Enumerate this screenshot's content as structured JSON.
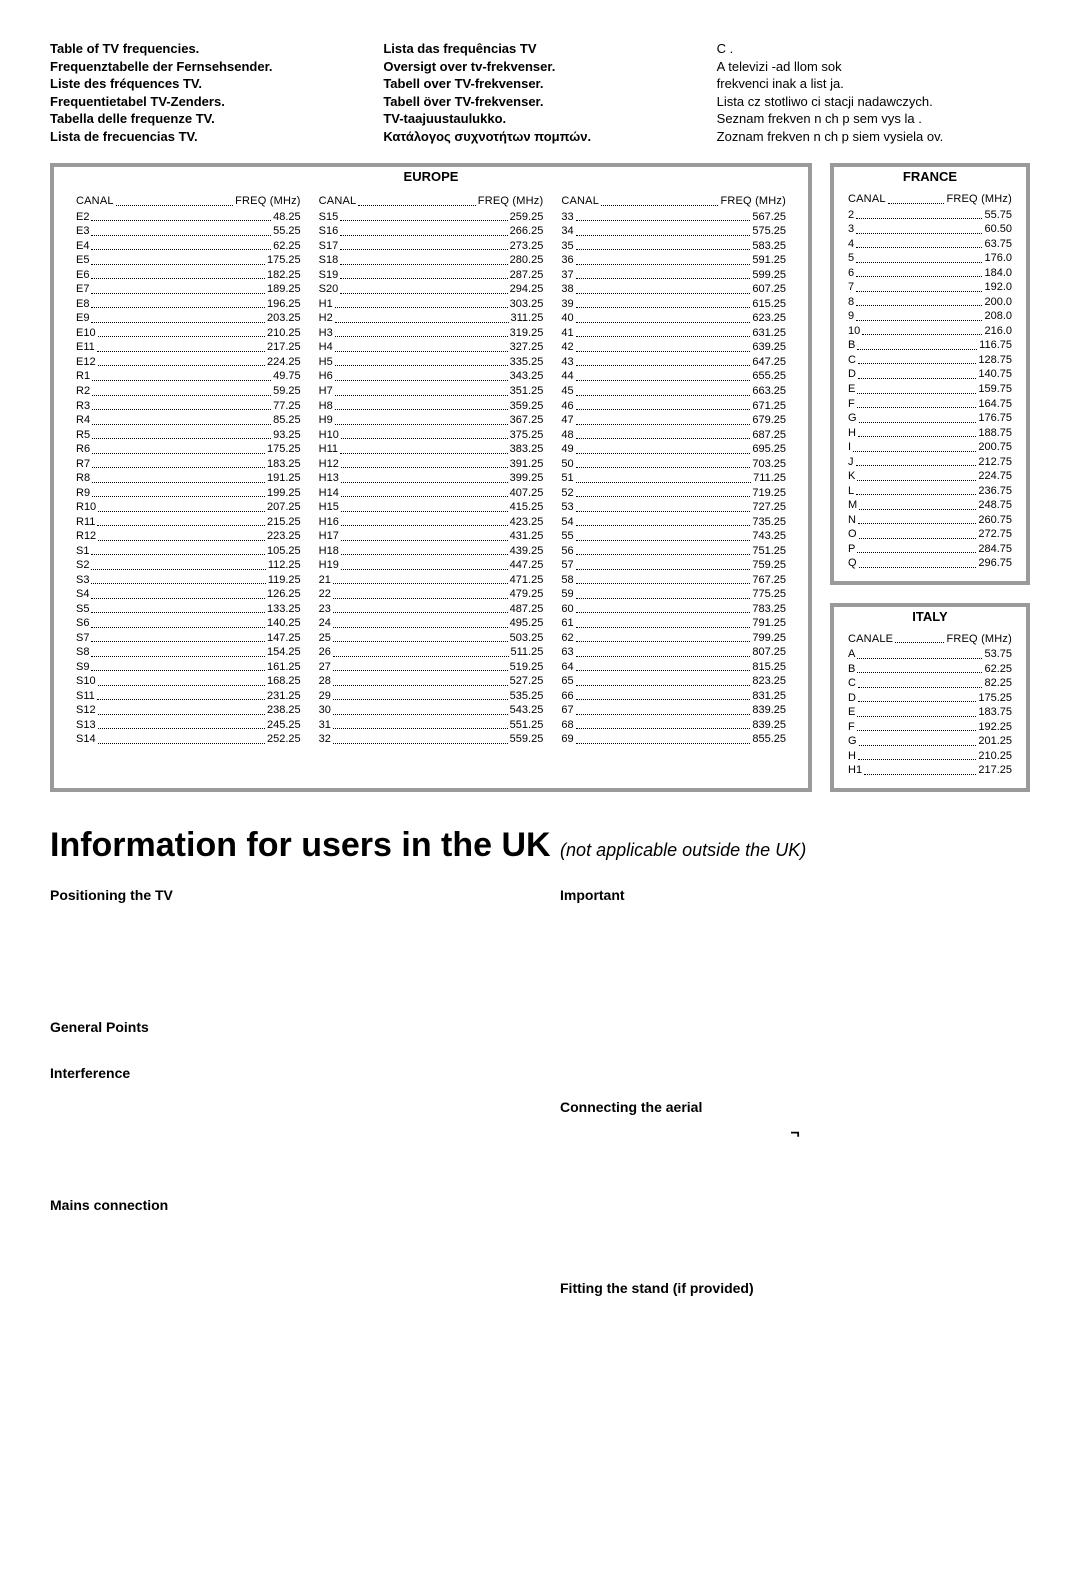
{
  "header": {
    "col1": [
      "Table of TV frequencies.",
      "Frequenztabelle der Fernsehsender.",
      "Liste des fréquences TV.",
      "Frequentietabel TV-Zenders.",
      "Tabella delle frequenze TV.",
      "Lista de frecuencias TV."
    ],
    "col2": [
      "Lista das frequências TV",
      "Oversigt over tv-frekvenser.",
      "Tabell over TV-frekvenser.",
      "Tabell över TV-frekvenser.",
      "TV-taajuustaulukko.",
      "Κατάλογος συχνοτήτων πομπών."
    ],
    "col3": [
      "C .",
      "A televizi -ad llom sok",
      "frekvenci inak a list ja.",
      "Lista cz stotliwo ci stacji nadawczych.",
      "Seznam frekven n ch p sem vys la .",
      "Zoznam frekven n ch p siem vysiela ov."
    ]
  },
  "europe": {
    "title": "EUROPE",
    "header_left": "CANAL",
    "header_right": "FREQ (MHz)",
    "col1": [
      [
        "E2",
        "48.25"
      ],
      [
        "E3",
        "55.25"
      ],
      [
        "E4",
        "62.25"
      ],
      [
        "E5",
        "175.25"
      ],
      [
        "E6",
        "182.25"
      ],
      [
        "E7",
        "189.25"
      ],
      [
        "E8",
        "196.25"
      ],
      [
        "E9",
        "203.25"
      ],
      [
        "E10",
        "210.25"
      ],
      [
        "E11",
        "217.25"
      ],
      [
        "E12",
        "224.25"
      ],
      [
        "R1",
        "49.75"
      ],
      [
        "R2",
        "59.25"
      ],
      [
        "R3",
        "77.25"
      ],
      [
        "R4",
        "85.25"
      ],
      [
        "R5",
        "93.25"
      ],
      [
        "R6",
        "175.25"
      ],
      [
        "R7",
        "183.25"
      ],
      [
        "R8",
        "191.25"
      ],
      [
        "R9",
        "199.25"
      ],
      [
        "R10",
        "207.25"
      ],
      [
        "R11",
        "215.25"
      ],
      [
        "R12",
        "223.25"
      ],
      [
        "S1",
        "105.25"
      ],
      [
        "S2",
        "112.25"
      ],
      [
        "S3",
        "119.25"
      ],
      [
        "S4",
        "126.25"
      ],
      [
        "S5",
        "133.25"
      ],
      [
        "S6",
        "140.25"
      ],
      [
        "S7",
        "147.25"
      ],
      [
        "S8",
        "154.25"
      ],
      [
        "S9",
        "161.25"
      ],
      [
        "S10",
        "168.25"
      ],
      [
        "S11",
        "231.25"
      ],
      [
        "S12",
        "238.25"
      ],
      [
        "S13",
        "245.25"
      ],
      [
        "S14",
        "252.25"
      ]
    ],
    "col2": [
      [
        "S15",
        "259.25"
      ],
      [
        "S16",
        "266.25"
      ],
      [
        "S17",
        "273.25"
      ],
      [
        "S18",
        "280.25"
      ],
      [
        "S19",
        "287.25"
      ],
      [
        "S20",
        "294.25"
      ],
      [
        "H1",
        "303.25"
      ],
      [
        "H2",
        "311.25"
      ],
      [
        "H3",
        "319.25"
      ],
      [
        "H4",
        "327.25"
      ],
      [
        "H5",
        "335.25"
      ],
      [
        "H6",
        "343.25"
      ],
      [
        "H7",
        "351.25"
      ],
      [
        "H8",
        "359.25"
      ],
      [
        "H9",
        "367.25"
      ],
      [
        "H10",
        "375.25"
      ],
      [
        "H11",
        "383.25"
      ],
      [
        "H12",
        "391.25"
      ],
      [
        "H13",
        "399.25"
      ],
      [
        "H14",
        "407.25"
      ],
      [
        "H15",
        "415.25"
      ],
      [
        "H16",
        "423.25"
      ],
      [
        "H17",
        "431.25"
      ],
      [
        "H18",
        "439.25"
      ],
      [
        "H19",
        "447.25"
      ],
      [
        "21",
        "471.25"
      ],
      [
        "22",
        "479.25"
      ],
      [
        "23",
        "487.25"
      ],
      [
        "24",
        "495.25"
      ],
      [
        "25",
        "503.25"
      ],
      [
        "26",
        "511.25"
      ],
      [
        "27",
        "519.25"
      ],
      [
        "28",
        "527.25"
      ],
      [
        "29",
        "535.25"
      ],
      [
        "30",
        "543.25"
      ],
      [
        "31",
        "551.25"
      ],
      [
        "32",
        "559.25"
      ]
    ],
    "col3": [
      [
        "33",
        "567.25"
      ],
      [
        "34",
        "575.25"
      ],
      [
        "35",
        "583.25"
      ],
      [
        "36",
        "591.25"
      ],
      [
        "37",
        "599.25"
      ],
      [
        "38",
        "607.25"
      ],
      [
        "39",
        "615.25"
      ],
      [
        "40",
        "623.25"
      ],
      [
        "41",
        "631.25"
      ],
      [
        "42",
        "639.25"
      ],
      [
        "43",
        "647.25"
      ],
      [
        "44",
        "655.25"
      ],
      [
        "45",
        "663.25"
      ],
      [
        "46",
        "671.25"
      ],
      [
        "47",
        "679.25"
      ],
      [
        "48",
        "687.25"
      ],
      [
        "49",
        "695.25"
      ],
      [
        "50",
        "703.25"
      ],
      [
        "51",
        "711.25"
      ],
      [
        "52",
        "719.25"
      ],
      [
        "53",
        "727.25"
      ],
      [
        "54",
        "735.25"
      ],
      [
        "55",
        "743.25"
      ],
      [
        "56",
        "751.25"
      ],
      [
        "57",
        "759.25"
      ],
      [
        "58",
        "767.25"
      ],
      [
        "59",
        "775.25"
      ],
      [
        "60",
        "783.25"
      ],
      [
        "61",
        "791.25"
      ],
      [
        "62",
        "799.25"
      ],
      [
        "63",
        "807.25"
      ],
      [
        "64",
        "815.25"
      ],
      [
        "65",
        "823.25"
      ],
      [
        "66",
        "831.25"
      ],
      [
        "67",
        "839.25"
      ],
      [
        "68",
        "839.25"
      ],
      [
        "69",
        "855.25"
      ]
    ]
  },
  "france": {
    "title": "FRANCE",
    "header_left": "CANAL",
    "header_right": "FREQ (MHz)",
    "rows": [
      [
        "2",
        "55.75"
      ],
      [
        "3",
        "60.50"
      ],
      [
        "4",
        "63.75"
      ],
      [
        "5",
        "176.0"
      ],
      [
        "6",
        "184.0"
      ],
      [
        "7",
        "192.0"
      ],
      [
        "8",
        "200.0"
      ],
      [
        "9",
        "208.0"
      ],
      [
        "10",
        "216.0"
      ],
      [
        "B",
        "116.75"
      ],
      [
        "C",
        "128.75"
      ],
      [
        "D",
        "140.75"
      ],
      [
        "E",
        "159.75"
      ],
      [
        "F",
        "164.75"
      ],
      [
        "G",
        "176.75"
      ],
      [
        "H",
        "188.75"
      ],
      [
        "I",
        "200.75"
      ],
      [
        "J",
        "212.75"
      ],
      [
        "K",
        "224.75"
      ],
      [
        "L",
        "236.75"
      ],
      [
        "M",
        "248.75"
      ],
      [
        "N",
        "260.75"
      ],
      [
        "O",
        "272.75"
      ],
      [
        "P",
        "284.75"
      ],
      [
        "Q",
        "296.75"
      ]
    ]
  },
  "italy": {
    "title": "ITALY",
    "header_left": "CANALE",
    "header_right": "FREQ (MHz)",
    "rows": [
      [
        "A",
        "53.75"
      ],
      [
        "B",
        "62.25"
      ],
      [
        "C",
        "82.25"
      ],
      [
        "D",
        "175.25"
      ],
      [
        "E",
        "183.75"
      ],
      [
        "F",
        "192.25"
      ],
      [
        "G",
        "201.25"
      ],
      [
        "H",
        "210.25"
      ],
      [
        "H1",
        "217.25"
      ]
    ]
  },
  "uk": {
    "title": "Information for users in the UK",
    "subtitle": "(not applicable outside the UK)",
    "h_positioning": "Positioning the TV",
    "h_general": "General Points",
    "h_interference": "Interference",
    "h_mains": "Mains connection",
    "h_important": "Important",
    "h_aerial": "Connecting the aerial",
    "aerial_symbol": "¬",
    "h_stand": "Fitting the stand (if provided)"
  }
}
